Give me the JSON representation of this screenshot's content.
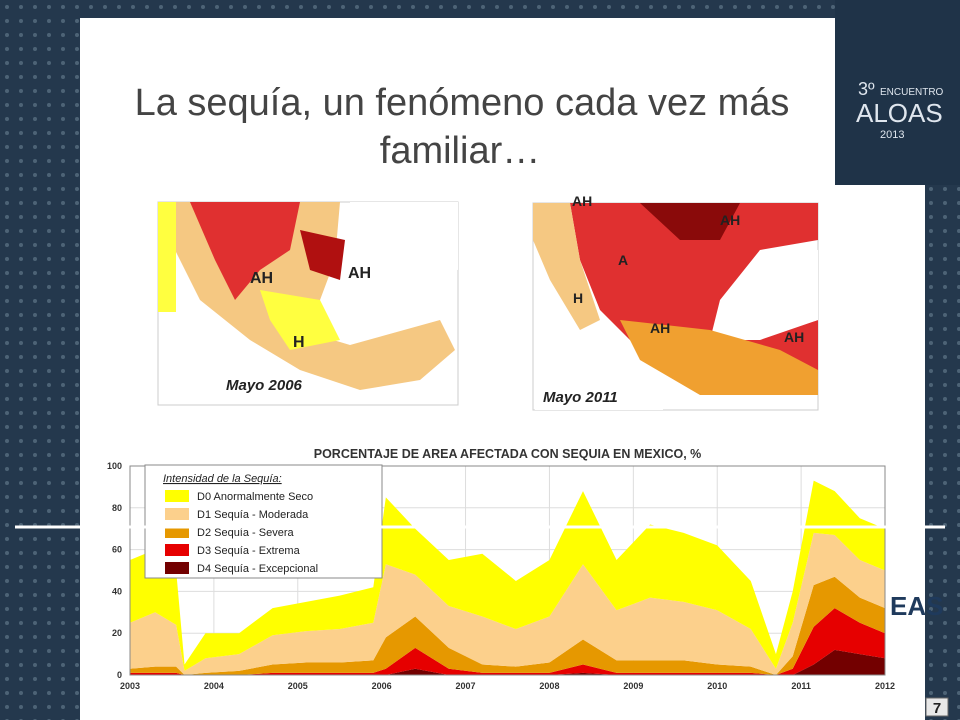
{
  "title": [
    "La sequía, un fenómeno cada vez más",
    "familiar…"
  ],
  "logo": {
    "number": "3º",
    "line1": "ENCUENTRO",
    "name": "ALOAS",
    "year": "2013"
  },
  "side_logo": "EAS",
  "page_number": "7",
  "maps": [
    {
      "caption": "Mayo 2006",
      "labels": [
        "AH",
        "AH",
        "H"
      ]
    },
    {
      "caption": "Mayo 2011",
      "labels": [
        "AH",
        "AH",
        "A",
        "H",
        "AH",
        "AH"
      ]
    }
  ],
  "chart_data": {
    "type": "area",
    "stacked": true,
    "title": "PORCENTAJE DE AREA AFECTADA CON SEQUIA EN MEXICO, %",
    "legend_title": "Intensidad de la Sequía:",
    "legend": "upper left",
    "xlim": [
      2003,
      2012
    ],
    "xticks": [
      2003,
      2004,
      2005,
      2006,
      2007,
      2008,
      2009,
      2010,
      2011,
      2012
    ],
    "ylim": [
      0,
      100
    ],
    "yticks": [
      0,
      20,
      40,
      60,
      80,
      100
    ],
    "grid": true,
    "x": [
      2003,
      2003.3,
      2003.55,
      2003.65,
      2003.9,
      2004.3,
      2004.7,
      2005.1,
      2005.5,
      2005.9,
      2006.05,
      2006.4,
      2006.8,
      2007.2,
      2007.6,
      2008.0,
      2008.4,
      2008.8,
      2009.2,
      2009.6,
      2010.0,
      2010.4,
      2010.7,
      2010.9,
      2011.15,
      2011.4,
      2011.7,
      2012.0
    ],
    "series": [
      {
        "name": "D4 Sequía - Excepcional",
        "color": "#730000",
        "values": [
          0,
          0,
          0,
          0,
          0,
          0,
          0,
          0,
          0,
          0,
          0,
          3,
          0,
          0,
          0,
          0,
          1,
          0,
          0,
          0,
          0,
          0,
          0,
          0,
          5,
          12,
          10,
          8
        ]
      },
      {
        "name": "D3 Sequía - Extrema",
        "color": "#e60000",
        "values": [
          1,
          1,
          1,
          0,
          0,
          0,
          1,
          1,
          1,
          1,
          3,
          10,
          3,
          1,
          1,
          1,
          4,
          1,
          1,
          1,
          1,
          1,
          0,
          3,
          18,
          20,
          15,
          12
        ]
      },
      {
        "name": "D2 Sequía - Severa",
        "color": "#e69800",
        "values": [
          2,
          3,
          3,
          0,
          1,
          2,
          4,
          5,
          5,
          6,
          15,
          15,
          10,
          4,
          3,
          5,
          12,
          6,
          6,
          6,
          4,
          3,
          0,
          6,
          20,
          15,
          12,
          12
        ]
      },
      {
        "name": "D1 Sequía - Moderada",
        "color": "#fcd08c",
        "values": [
          22,
          26,
          20,
          2,
          7,
          8,
          14,
          15,
          16,
          18,
          35,
          20,
          20,
          23,
          18,
          22,
          36,
          24,
          30,
          28,
          26,
          18,
          3,
          16,
          25,
          20,
          18,
          18
        ]
      },
      {
        "name": "D0 Anormalmente Seco",
        "color": "#ffff00",
        "values": [
          30,
          30,
          26,
          3,
          12,
          10,
          13,
          14,
          16,
          17,
          32,
          22,
          22,
          30,
          23,
          27,
          35,
          24,
          35,
          33,
          31,
          23,
          7,
          15,
          25,
          21,
          20,
          20
        ]
      }
    ]
  }
}
